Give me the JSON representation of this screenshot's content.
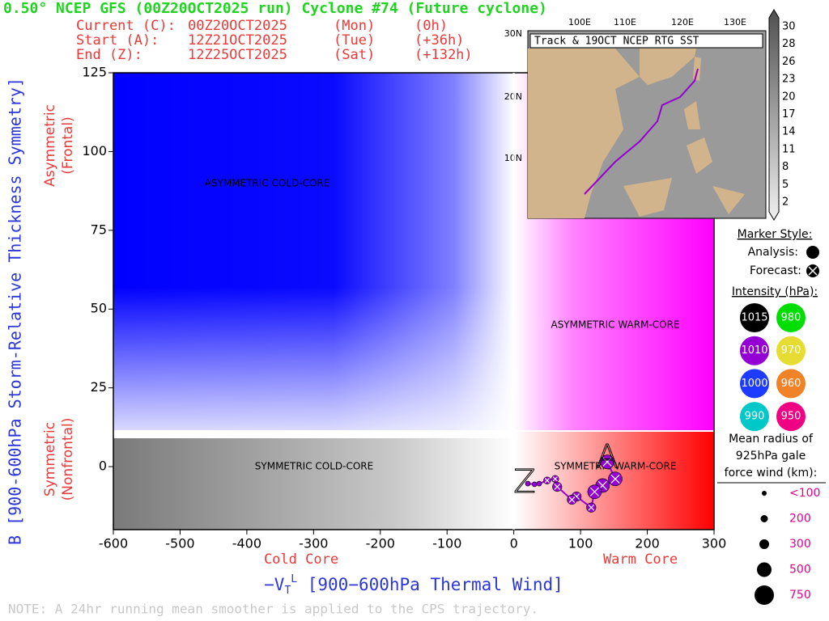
{
  "header": {
    "title": "0.50° NCEP GFS (00Z20OCT2025 run) Cyclone #74 (Future cyclone)",
    "rows": [
      [
        "Current (C):",
        "00Z20OCT2025",
        "(Mon)",
        "(0h)"
      ],
      [
        "Start (A):",
        "12Z21OCT2025",
        "(Tue)",
        "(+36h)"
      ],
      [
        "End (Z):",
        "12Z25OCT2025",
        "(Sat)",
        "(+132h)"
      ]
    ]
  },
  "chart_data": {
    "type": "scatter",
    "y_label": "B [900-600hPa Storm-Relative Thickness Symmetry]",
    "y_upper_label": [
      "Asymmetric",
      "(Frontal)"
    ],
    "y_lower_label": [
      "Symmetric",
      "(Nonfrontal)"
    ],
    "x_label_parts": [
      "−V",
      "T",
      "L",
      " [900−600hPa Thermal Wind]"
    ],
    "x_left_label": "Cold Core",
    "x_right_label": "Warm Core",
    "quadrant_labels": [
      "ASYMMETRIC COLD-CORE",
      "ASYMMETRIC WARM-CORE",
      "SYMMETRIC COLD-CORE",
      "SYMMETRIC WARM-CORE"
    ],
    "xlim": [
      -600,
      300
    ],
    "ylim": [
      -20,
      125
    ],
    "xticks": [
      -600,
      -500,
      -400,
      -300,
      -200,
      -100,
      0,
      100,
      200,
      300
    ],
    "yticks": [
      0,
      25,
      50,
      75,
      100,
      125
    ],
    "x": [
      140,
      152,
      133,
      121,
      116,
      94,
      87,
      65,
      62,
      50,
      38,
      31,
      21
    ],
    "values": [
      1.5,
      -3.9,
      -6,
      -8,
      -13,
      -9.5,
      -10.5,
      -6.4,
      -3.9,
      -4.4,
      -5.4,
      -5.6,
      -5.4
    ],
    "sizes": [
      500,
      500,
      500,
      500,
      300,
      300,
      300,
      300,
      200,
      200,
      100,
      100,
      100
    ],
    "color": "#9400d3",
    "start_label": "A",
    "end_label": "Z"
  },
  "note": "NOTE:  A 24hr running mean smoother is applied to the CPS trajectory.",
  "legend": {
    "marker_title": "Marker Style:",
    "analysis": "Analysis:",
    "forecast": "Forecast:",
    "intensity_title": "Intensity (hPa):",
    "intensity": [
      {
        "label": "1015",
        "color": "#000000"
      },
      {
        "label": "980",
        "color": "#00dd00"
      },
      {
        "label": "1010",
        "color": "#9400d3"
      },
      {
        "label": "970",
        "color": "#e6dc32"
      },
      {
        "label": "1000",
        "color": "#1e3cff"
      },
      {
        "label": "960",
        "color": "#f08228"
      },
      {
        "label": "990",
        "color": "#00c8c8"
      },
      {
        "label": "950",
        "color": "#f00082"
      }
    ],
    "size_title": [
      "Mean radius of",
      "925hPa gale",
      "force wind (km):"
    ],
    "sizes": [
      "<100",
      "200",
      "300",
      "500",
      "750"
    ]
  },
  "inset": {
    "title": "Track & 19OCT NCEP RTG SST",
    "lon_labels": [
      "100E",
      "110E",
      "120E",
      "130E"
    ],
    "lat_labels": [
      "30N",
      "20N",
      "10N"
    ],
    "colorbar_labels": [
      "30",
      "28",
      "26",
      "23",
      "20",
      "17",
      "14",
      "11",
      "8",
      "5",
      "2"
    ]
  }
}
